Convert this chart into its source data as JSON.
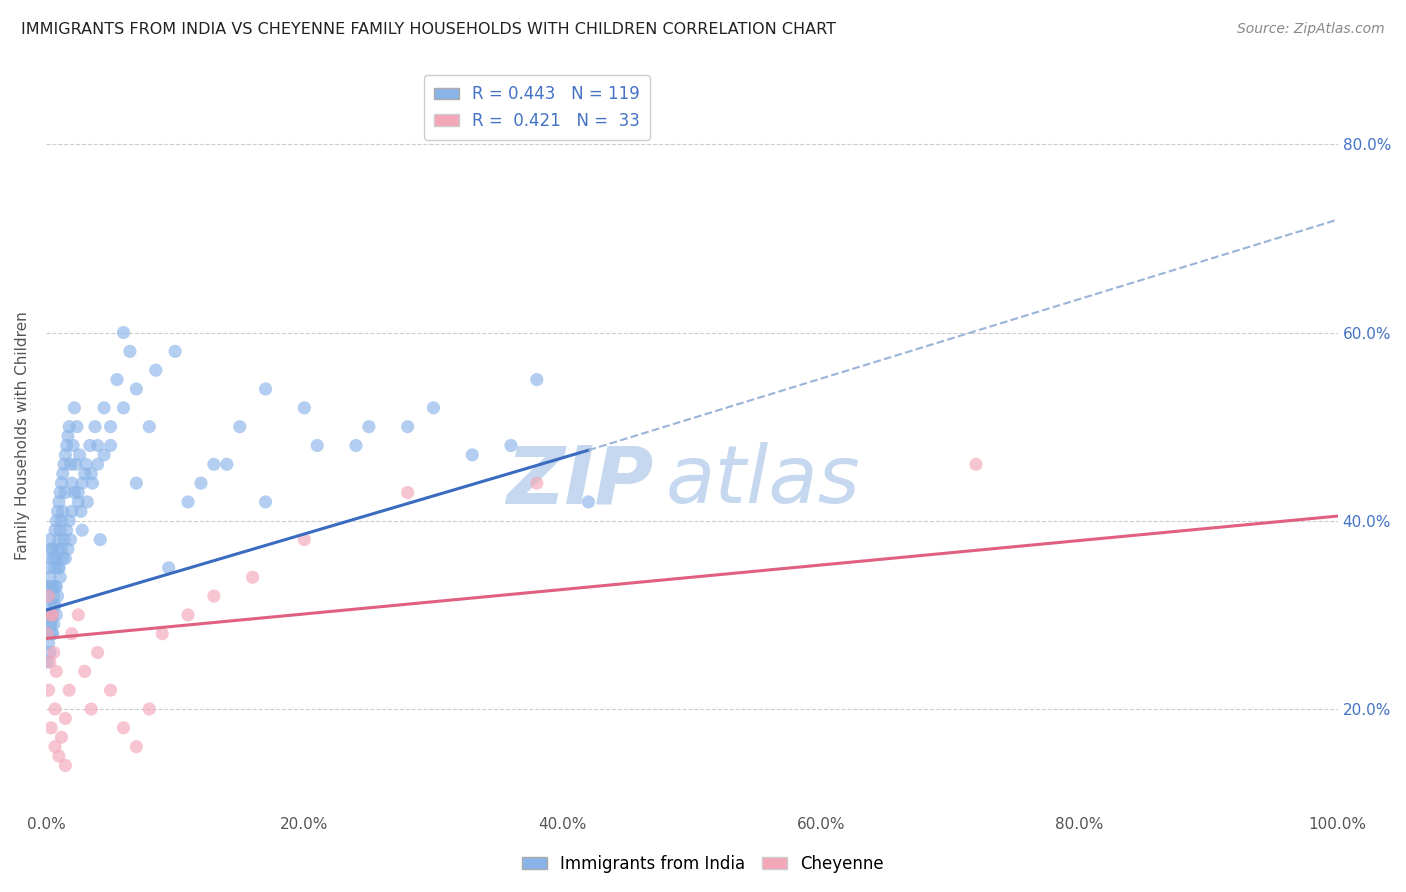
{
  "title": "IMMIGRANTS FROM INDIA VS CHEYENNE FAMILY HOUSEHOLDS WITH CHILDREN CORRELATION CHART",
  "source": "Source: ZipAtlas.com",
  "ylabel": "Family Households with Children",
  "legend_bottom": [
    "Immigrants from India",
    "Cheyenne"
  ],
  "R1": 0.443,
  "N1": 119,
  "R2": 0.421,
  "N2": 33,
  "color1": "#8ab4e8",
  "color2": "#f4a7b9",
  "line1_color": "#3a6bbf",
  "line2_color": "#e06080",
  "dash_color": "#9ab4d8",
  "xlim": [
    0.0,
    1.0
  ],
  "ylim": [
    0.09,
    0.89
  ],
  "xticks": [
    0.0,
    0.2,
    0.4,
    0.6,
    0.8,
    1.0
  ],
  "yticks": [
    0.2,
    0.4,
    0.6,
    0.8
  ],
  "xtick_labels": [
    "0.0%",
    "20.0%",
    "40.0%",
    "60.0%",
    "80.0%",
    "100.0%"
  ],
  "right_ytick_labels": [
    "20.0%",
    "40.0%",
    "60.0%",
    "80.0%"
  ],
  "background_color": "#ffffff",
  "grid_color": "#cccccc",
  "title_color": "#222222",
  "axis_label_color": "#555555",
  "tick_color": "#555555",
  "blue_tick_color": "#4472c4",
  "line1_x_start": 0.0,
  "line1_y_start": 0.305,
  "line1_x_solid_end": 0.42,
  "line1_y_solid_end": 0.475,
  "line1_x_dash_end": 1.0,
  "line1_y_dash_end": 0.72,
  "line2_x_start": 0.0,
  "line2_y_start": 0.275,
  "line2_x_end": 1.0,
  "line2_y_end": 0.405,
  "series1_x": [
    0.001,
    0.001,
    0.002,
    0.002,
    0.002,
    0.003,
    0.003,
    0.003,
    0.003,
    0.004,
    0.004,
    0.004,
    0.004,
    0.005,
    0.005,
    0.005,
    0.005,
    0.006,
    0.006,
    0.006,
    0.007,
    0.007,
    0.007,
    0.008,
    0.008,
    0.008,
    0.009,
    0.009,
    0.01,
    0.01,
    0.01,
    0.011,
    0.011,
    0.012,
    0.012,
    0.013,
    0.013,
    0.014,
    0.015,
    0.015,
    0.016,
    0.017,
    0.018,
    0.019,
    0.02,
    0.021,
    0.022,
    0.023,
    0.024,
    0.025,
    0.026,
    0.027,
    0.028,
    0.03,
    0.032,
    0.034,
    0.036,
    0.038,
    0.04,
    0.042,
    0.045,
    0.05,
    0.055,
    0.06,
    0.065,
    0.07,
    0.08,
    0.095,
    0.11,
    0.13,
    0.15,
    0.17,
    0.2,
    0.24,
    0.28,
    0.33,
    0.38,
    0.001,
    0.002,
    0.003,
    0.004,
    0.005,
    0.006,
    0.007,
    0.008,
    0.009,
    0.01,
    0.011,
    0.012,
    0.013,
    0.014,
    0.015,
    0.016,
    0.017,
    0.018,
    0.019,
    0.02,
    0.022,
    0.025,
    0.028,
    0.031,
    0.035,
    0.04,
    0.045,
    0.05,
    0.06,
    0.07,
    0.085,
    0.1,
    0.12,
    0.14,
    0.17,
    0.21,
    0.25,
    0.3,
    0.36,
    0.42
  ],
  "series1_y": [
    0.3,
    0.33,
    0.28,
    0.35,
    0.32,
    0.38,
    0.34,
    0.31,
    0.29,
    0.37,
    0.33,
    0.36,
    0.3,
    0.37,
    0.33,
    0.3,
    0.28,
    0.36,
    0.32,
    0.29,
    0.39,
    0.35,
    0.31,
    0.4,
    0.36,
    0.33,
    0.41,
    0.37,
    0.42,
    0.38,
    0.35,
    0.43,
    0.39,
    0.44,
    0.4,
    0.45,
    0.41,
    0.46,
    0.47,
    0.43,
    0.48,
    0.49,
    0.5,
    0.46,
    0.44,
    0.48,
    0.52,
    0.46,
    0.5,
    0.43,
    0.47,
    0.41,
    0.39,
    0.45,
    0.42,
    0.48,
    0.44,
    0.5,
    0.46,
    0.38,
    0.52,
    0.48,
    0.55,
    0.6,
    0.58,
    0.44,
    0.5,
    0.35,
    0.42,
    0.46,
    0.5,
    0.54,
    0.52,
    0.48,
    0.5,
    0.47,
    0.55,
    0.25,
    0.27,
    0.26,
    0.29,
    0.28,
    0.31,
    0.33,
    0.3,
    0.32,
    0.35,
    0.34,
    0.37,
    0.36,
    0.38,
    0.36,
    0.39,
    0.37,
    0.4,
    0.38,
    0.41,
    0.43,
    0.42,
    0.44,
    0.46,
    0.45,
    0.48,
    0.47,
    0.5,
    0.52,
    0.54,
    0.56,
    0.58,
    0.44,
    0.46,
    0.42,
    0.48,
    0.5,
    0.52,
    0.48,
    0.42
  ],
  "series2_x": [
    0.001,
    0.002,
    0.003,
    0.004,
    0.005,
    0.006,
    0.007,
    0.008,
    0.01,
    0.012,
    0.015,
    0.018,
    0.02,
    0.025,
    0.03,
    0.035,
    0.04,
    0.05,
    0.06,
    0.07,
    0.08,
    0.09,
    0.11,
    0.13,
    0.16,
    0.2,
    0.28,
    0.38,
    0.002,
    0.004,
    0.007,
    0.015,
    0.72
  ],
  "series2_y": [
    0.28,
    0.22,
    0.25,
    0.18,
    0.3,
    0.26,
    0.2,
    0.24,
    0.15,
    0.17,
    0.19,
    0.22,
    0.28,
    0.3,
    0.24,
    0.2,
    0.26,
    0.22,
    0.18,
    0.16,
    0.2,
    0.28,
    0.3,
    0.32,
    0.34,
    0.38,
    0.43,
    0.44,
    0.32,
    0.3,
    0.16,
    0.14,
    0.46
  ],
  "watermark_text": "ZIP",
  "watermark_text2": "atlas",
  "watermark_color": "#c5d8f0"
}
